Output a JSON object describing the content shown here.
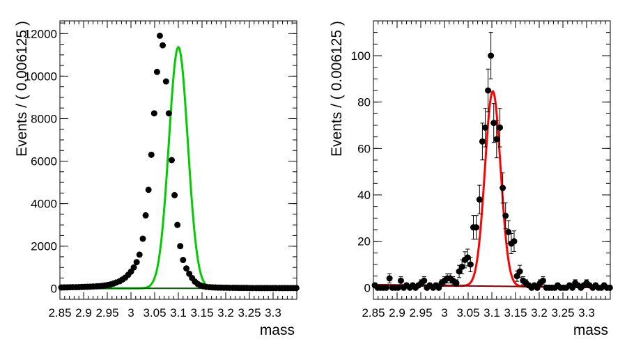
{
  "chart_data": [
    {
      "type": "scatter",
      "xlabel": "mass",
      "ylabel": "Events / ( 0.006125 )",
      "xlim": [
        2.85,
        3.35
      ],
      "ylim": [
        -500,
        12600
      ],
      "x_ticks": [
        "2.85",
        "2.9",
        "2.95",
        "3",
        "3.05",
        "3.1",
        "3.15",
        "3.2",
        "3.25",
        "3.3"
      ],
      "x_tick_values": [
        2.85,
        2.9,
        2.95,
        3.0,
        3.05,
        3.1,
        3.15,
        3.2,
        3.25,
        3.3
      ],
      "y_ticks": [
        "0",
        "2000",
        "4000",
        "6000",
        "8000",
        "10000",
        "12000"
      ],
      "y_tick_values": [
        0,
        2000,
        4000,
        6000,
        8000,
        10000,
        12000
      ],
      "series": [
        {
          "kind": "points",
          "x": [
            2.853,
            2.859,
            2.865,
            2.871,
            2.877,
            2.884,
            2.89,
            2.896,
            2.902,
            2.908,
            2.914,
            2.92,
            2.927,
            2.933,
            2.939,
            2.945,
            2.951,
            2.957,
            2.963,
            2.969,
            2.976,
            2.982,
            2.988,
            2.994,
            3.0,
            3.006,
            3.012,
            3.018,
            3.025,
            3.031,
            3.037,
            3.043,
            3.049,
            3.055,
            3.061,
            3.067,
            3.074,
            3.08,
            3.086,
            3.092,
            3.098,
            3.104,
            3.11,
            3.117,
            3.123,
            3.129,
            3.135,
            3.141,
            3.147,
            3.153,
            3.159,
            3.166,
            3.172,
            3.178,
            3.184,
            3.19,
            3.196,
            3.202,
            3.208,
            3.215,
            3.221,
            3.227,
            3.233,
            3.239,
            3.245,
            3.251,
            3.257,
            3.264,
            3.27,
            3.276,
            3.282,
            3.288,
            3.294,
            3.3,
            3.306,
            3.313,
            3.319,
            3.325,
            3.331,
            3.337,
            3.343,
            3.349
          ],
          "y": [
            55,
            60,
            60,
            65,
            70,
            70,
            75,
            80,
            85,
            90,
            95,
            100,
            110,
            120,
            130,
            150,
            170,
            200,
            240,
            290,
            350,
            430,
            520,
            650,
            800,
            1000,
            1250,
            1600,
            2350,
            3450,
            4650,
            6300,
            8250,
            10200,
            11900,
            11450,
            9750,
            8250,
            6050,
            4400,
            3000,
            2000,
            1350,
            950,
            700,
            500,
            330,
            220,
            150,
            110,
            85,
            70,
            60,
            55,
            50,
            50,
            45,
            45,
            40,
            40,
            40,
            35,
            35,
            35,
            35,
            30,
            30,
            30,
            30,
            30,
            30,
            30,
            30,
            30,
            30,
            30,
            30,
            30,
            30,
            30,
            30,
            30
          ],
          "color": "#000000"
        },
        {
          "kind": "line",
          "name": "",
          "model": "gaussian_plus_constant",
          "mean": 3.1,
          "sigma": 0.02,
          "peak": 11350,
          "background": 15,
          "color": "#00cc00"
        },
        {
          "kind": "line",
          "name": "",
          "model": "constant",
          "value": 15,
          "color": "#006400"
        }
      ]
    },
    {
      "type": "scatter",
      "xlabel": "mass",
      "ylabel": "Events / ( 0.006125 )",
      "xlim": [
        2.85,
        3.35
      ],
      "ylim": [
        -5,
        115
      ],
      "x_ticks": [
        "2.85",
        "2.9",
        "2.95",
        "3",
        "3.05",
        "3.1",
        "3.15",
        "3.2",
        "3.25",
        "3.3"
      ],
      "x_tick_values": [
        2.85,
        2.9,
        2.95,
        3.0,
        3.05,
        3.1,
        3.15,
        3.2,
        3.25,
        3.3
      ],
      "y_ticks": [
        "0",
        "20",
        "40",
        "60",
        "80",
        "100"
      ],
      "y_tick_values": [
        0,
        20,
        40,
        60,
        80,
        100
      ],
      "series": [
        {
          "kind": "points_with_errors",
          "x": [
            2.853,
            2.859,
            2.865,
            2.871,
            2.877,
            2.884,
            2.89,
            2.896,
            2.902,
            2.908,
            2.914,
            2.92,
            2.927,
            2.933,
            2.939,
            2.945,
            2.951,
            2.957,
            2.963,
            2.969,
            2.976,
            2.982,
            2.988,
            2.994,
            3.0,
            3.006,
            3.012,
            3.018,
            3.025,
            3.031,
            3.037,
            3.043,
            3.049,
            3.055,
            3.061,
            3.067,
            3.074,
            3.08,
            3.086,
            3.092,
            3.098,
            3.104,
            3.11,
            3.117,
            3.123,
            3.129,
            3.135,
            3.141,
            3.147,
            3.153,
            3.159,
            3.166,
            3.172,
            3.178,
            3.184,
            3.19,
            3.196,
            3.202,
            3.208,
            3.215,
            3.221,
            3.227,
            3.233,
            3.239,
            3.245,
            3.251,
            3.257,
            3.264,
            3.27,
            3.276,
            3.282,
            3.288,
            3.294,
            3.3,
            3.306,
            3.313,
            3.319,
            3.325,
            3.331,
            3.337,
            3.343,
            3.349
          ],
          "y": [
            1,
            0,
            0,
            0,
            0,
            4,
            0,
            0,
            0,
            3,
            0,
            1,
            0,
            1,
            0,
            1,
            2,
            3,
            0,
            1,
            0,
            1,
            0,
            2,
            3,
            4,
            4,
            3,
            2,
            7,
            9,
            12,
            13,
            10,
            26,
            26,
            38,
            63,
            69,
            85,
            100,
            71,
            64,
            69,
            43,
            31,
            24,
            19,
            20,
            5,
            7,
            3,
            2,
            1,
            0,
            1,
            0,
            2,
            3,
            0,
            0,
            0,
            0,
            1,
            0,
            0,
            0,
            1,
            0,
            2,
            1,
            0,
            1,
            2,
            1,
            0,
            1,
            0,
            0,
            1,
            0,
            0
          ],
          "color": "#000000"
        },
        {
          "kind": "line",
          "name": "",
          "model": "gaussian_plus_linear",
          "mean": 3.102,
          "sigma": 0.0165,
          "peak": 84,
          "background_start": 1.2,
          "background_end": 0.1,
          "color": "#ff0000"
        },
        {
          "kind": "line",
          "name": "",
          "model": "linear",
          "start": 1.2,
          "end": 0.1,
          "color": "#800000"
        }
      ]
    }
  ]
}
